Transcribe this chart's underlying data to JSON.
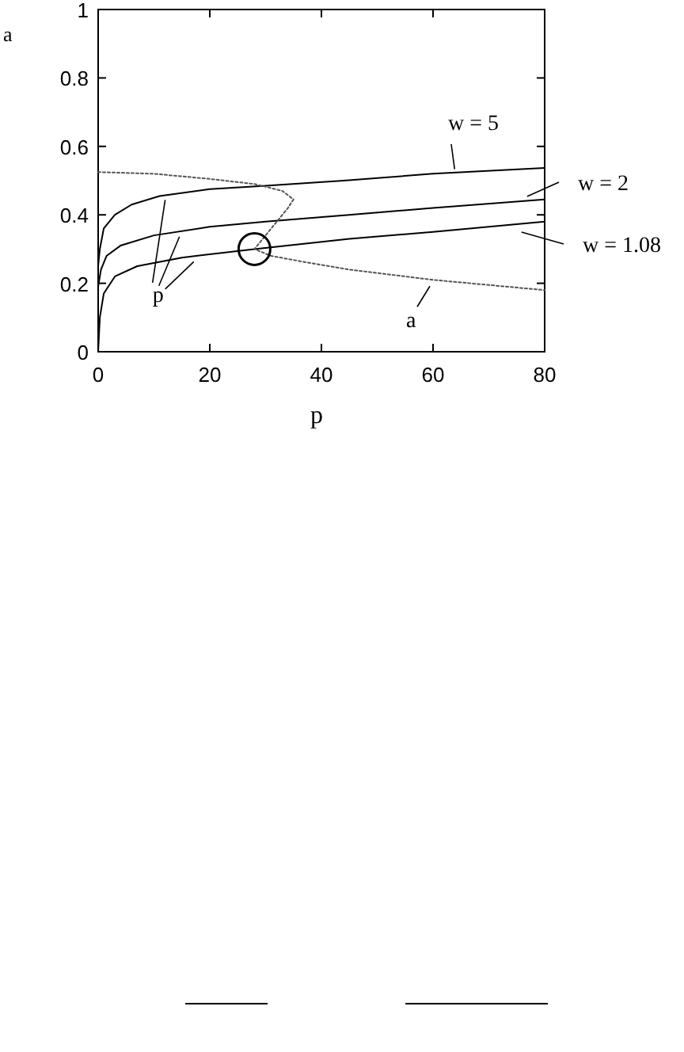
{
  "chart_data": {
    "type": "line",
    "xlabel": "p",
    "ylabel": "a",
    "xlim": [
      0,
      80
    ],
    "ylim": [
      0,
      1
    ],
    "xticks": [
      0,
      20,
      40,
      60,
      80
    ],
    "yticks": [
      0,
      0.2,
      0.4,
      0.6,
      0.8,
      1
    ],
    "grid": false,
    "legend": "right",
    "series": [
      {
        "name": "w = 5",
        "color": "#000000",
        "line_style": "solid",
        "x": [
          0,
          0.3,
          1,
          3,
          6,
          11,
          20,
          30,
          44,
          60,
          80
        ],
        "values": [
          0.25,
          0.3,
          0.36,
          0.4,
          0.43,
          0.455,
          0.475,
          0.485,
          0.5,
          0.52,
          0.537
        ]
      },
      {
        "name": "w = 2",
        "color": "#000000",
        "line_style": "solid",
        "x": [
          0,
          0.5,
          1.5,
          4,
          10,
          20,
          30,
          45,
          60,
          80
        ],
        "values": [
          0.19,
          0.24,
          0.28,
          0.31,
          0.34,
          0.365,
          0.38,
          0.4,
          0.42,
          0.445
        ]
      },
      {
        "name": "w = 1.08",
        "color": "#000000",
        "line_style": "solid",
        "x": [
          0,
          0.3,
          1,
          3,
          7,
          15,
          28,
          45,
          60,
          80
        ],
        "values": [
          0,
          0.1,
          0.17,
          0.22,
          0.25,
          0.275,
          0.3,
          0.33,
          0.35,
          0.38
        ]
      },
      {
        "color": "#555555",
        "line_style": "dotted",
        "x": [
          0,
          10,
          20,
          28,
          33,
          35,
          34,
          32,
          29.5,
          28,
          31,
          36,
          45,
          60,
          70,
          80
        ],
        "values": [
          0.525,
          0.52,
          0.505,
          0.49,
          0.47,
          0.445,
          0.42,
          0.38,
          0.33,
          0.3,
          0.28,
          0.265,
          0.24,
          0.21,
          0.195,
          0.18
        ]
      },
      {
        "type": "scatter",
        "color": "#000000",
        "marker": "circle",
        "x": [
          28
        ],
        "values": [
          0.3
        ]
      }
    ],
    "annotations": [
      {
        "text": "a",
        "x": 60,
        "y": 0.21
      },
      {
        "text": "p",
        "x": 14,
        "y": 0.35
      }
    ]
  }
}
